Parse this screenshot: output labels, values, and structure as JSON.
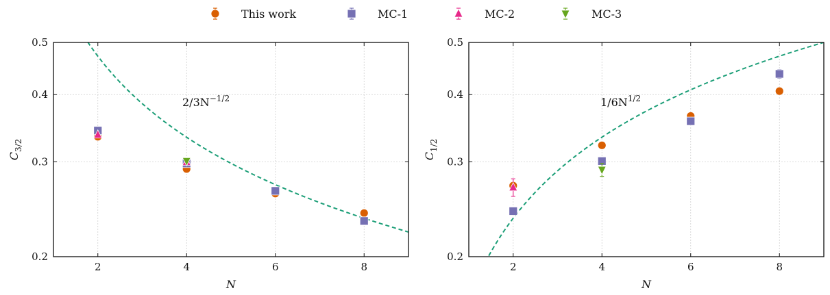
{
  "colors": {
    "this_work": "#d95f02",
    "mc1": "#7570b3",
    "mc2": "#e7298a",
    "mc3": "#66a61e",
    "fit": "#1b9e77",
    "grid": "#cfcfcf"
  },
  "legend": [
    {
      "key": "this_work",
      "label": "This work",
      "marker": "circle"
    },
    {
      "key": "mc1",
      "label": "MC-1",
      "marker": "square"
    },
    {
      "key": "mc2",
      "label": "MC-2",
      "marker": "triangle-up"
    },
    {
      "key": "mc3",
      "label": "MC-3",
      "marker": "triangle-down"
    }
  ],
  "chart_data": [
    {
      "type": "scatter",
      "xlabel": "N",
      "ylabel_main": "C",
      "ylabel_sub": "3/2",
      "xlim": [
        1.0,
        9.0
      ],
      "ylim": [
        0.2,
        0.5
      ],
      "yscale": "log",
      "xticks": [
        2,
        4,
        6,
        8
      ],
      "yticks": [
        0.2,
        0.3,
        0.4,
        0.5
      ],
      "ytick_labels": [
        "0.2",
        "0.3",
        "0.4",
        "0.5"
      ],
      "grid": true,
      "fit": {
        "label_base": "2/3N",
        "label_exp": "−1/2",
        "coef": 0.6667,
        "power": -0.5
      },
      "series": [
        {
          "key": "this_work",
          "name": "This work",
          "points": [
            {
              "x": 2,
              "y": 0.334
            },
            {
              "x": 4,
              "y": 0.291
            },
            {
              "x": 6,
              "y": 0.262
            },
            {
              "x": 8,
              "y": 0.241
            }
          ]
        },
        {
          "key": "mc1",
          "name": "MC-1",
          "points": [
            {
              "x": 2,
              "y": 0.343
            },
            {
              "x": 4,
              "y": 0.298
            },
            {
              "x": 6,
              "y": 0.265
            },
            {
              "x": 8,
              "y": 0.233
            }
          ]
        },
        {
          "key": "mc2",
          "name": "MC-2",
          "points": [
            {
              "x": 2,
              "y": 0.337
            },
            {
              "x": 4,
              "y": 0.3
            }
          ]
        },
        {
          "key": "mc3",
          "name": "MC-3",
          "points": [
            {
              "x": 4,
              "y": 0.301
            }
          ]
        }
      ]
    },
    {
      "type": "scatter",
      "xlabel": "N",
      "ylabel_main": "C",
      "ylabel_sub": "1/2",
      "xlim": [
        1.0,
        9.0
      ],
      "ylim": [
        0.2,
        0.5
      ],
      "yscale": "log",
      "xticks": [
        2,
        4,
        6,
        8
      ],
      "yticks": [
        0.2,
        0.3,
        0.4,
        0.5
      ],
      "ytick_labels": [
        "0.2",
        "0.3",
        "0.4",
        "0.5"
      ],
      "grid": true,
      "fit": {
        "label_base": "1/6N",
        "label_exp": "1/2",
        "coef": 0.1667,
        "power": 0.5
      },
      "series": [
        {
          "key": "this_work",
          "name": "This work",
          "points": [
            {
              "x": 2,
              "y": 0.271,
              "err": 0.004
            },
            {
              "x": 4,
              "y": 0.322
            },
            {
              "x": 6,
              "y": 0.365
            },
            {
              "x": 8,
              "y": 0.406
            }
          ]
        },
        {
          "key": "mc1",
          "name": "MC-1",
          "points": [
            {
              "x": 2,
              "y": 0.243
            },
            {
              "x": 4,
              "y": 0.301
            },
            {
              "x": 6,
              "y": 0.357,
              "err": 0.006
            },
            {
              "x": 8,
              "y": 0.437,
              "err": 0.008
            }
          ]
        },
        {
          "key": "mc2",
          "name": "MC-2",
          "points": [
            {
              "x": 2,
              "y": 0.269,
              "err": 0.01
            }
          ]
        },
        {
          "key": "mc3",
          "name": "MC-3",
          "points": [
            {
              "x": 4,
              "y": 0.29,
              "err": 0.008
            }
          ]
        }
      ]
    }
  ]
}
